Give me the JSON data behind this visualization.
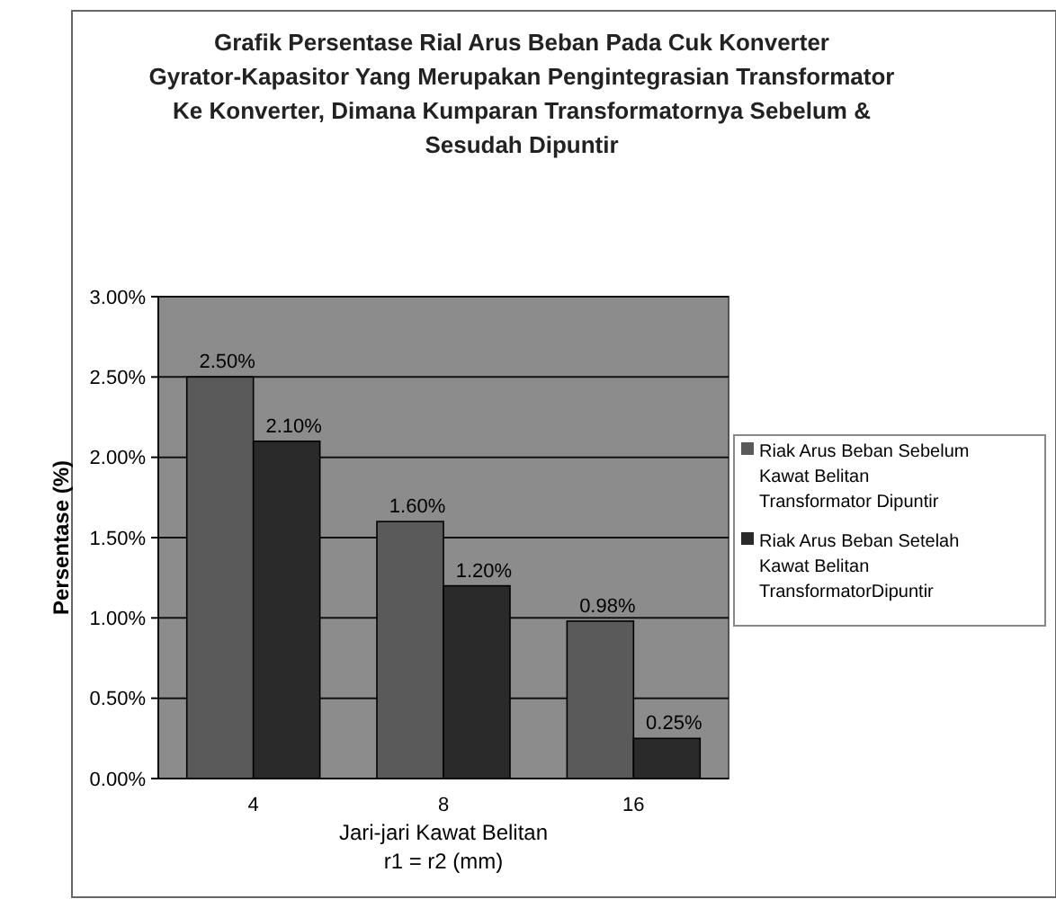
{
  "chart_data": {
    "type": "bar",
    "title": "Grafik Persentase Rial Arus Beban Pada Cuk Konverter Gyrator-Kapasitor Yang Merupakan Pengintegrasian Transformator Ke Konverter, Dimana Kumparan Transformatornya Sebelum & Sesudah Dipuntir",
    "xlabel": "Jari-jari Kawat Belitan\nr1 = r2 (mm)",
    "ylabel": "Persentase (%)",
    "categories": [
      "4",
      "8",
      "16"
    ],
    "series": [
      {
        "name": "Riak Arus Beban Sebelum Kawat Belitan Transformator Dipuntir",
        "color": "#5a5a5a",
        "values": [
          2.5,
          1.6,
          0.98
        ],
        "value_labels": [
          "2.50%",
          "1.60%",
          "0.98%"
        ]
      },
      {
        "name": "Riak Arus Beban Setelah Kawat Belitan TransformatorDipuntir",
        "color": "#2a2a2a",
        "values": [
          2.1,
          1.2,
          0.25
        ],
        "value_labels": [
          "2.10%",
          "1.20%",
          "0.25%"
        ]
      }
    ],
    "ylim": [
      0,
      3
    ],
    "yticks": [
      {
        "value": 0,
        "label": "0.00%"
      },
      {
        "value": 0.5,
        "label": "0.50%"
      },
      {
        "value": 1,
        "label": "1.00%"
      },
      {
        "value": 1.5,
        "label": "1.50%"
      },
      {
        "value": 2,
        "label": "2.00%"
      },
      {
        "value": 2.5,
        "label": "2.50%"
      },
      {
        "value": 3,
        "label": "3.00%"
      }
    ],
    "grid": "y",
    "legend": "right"
  }
}
